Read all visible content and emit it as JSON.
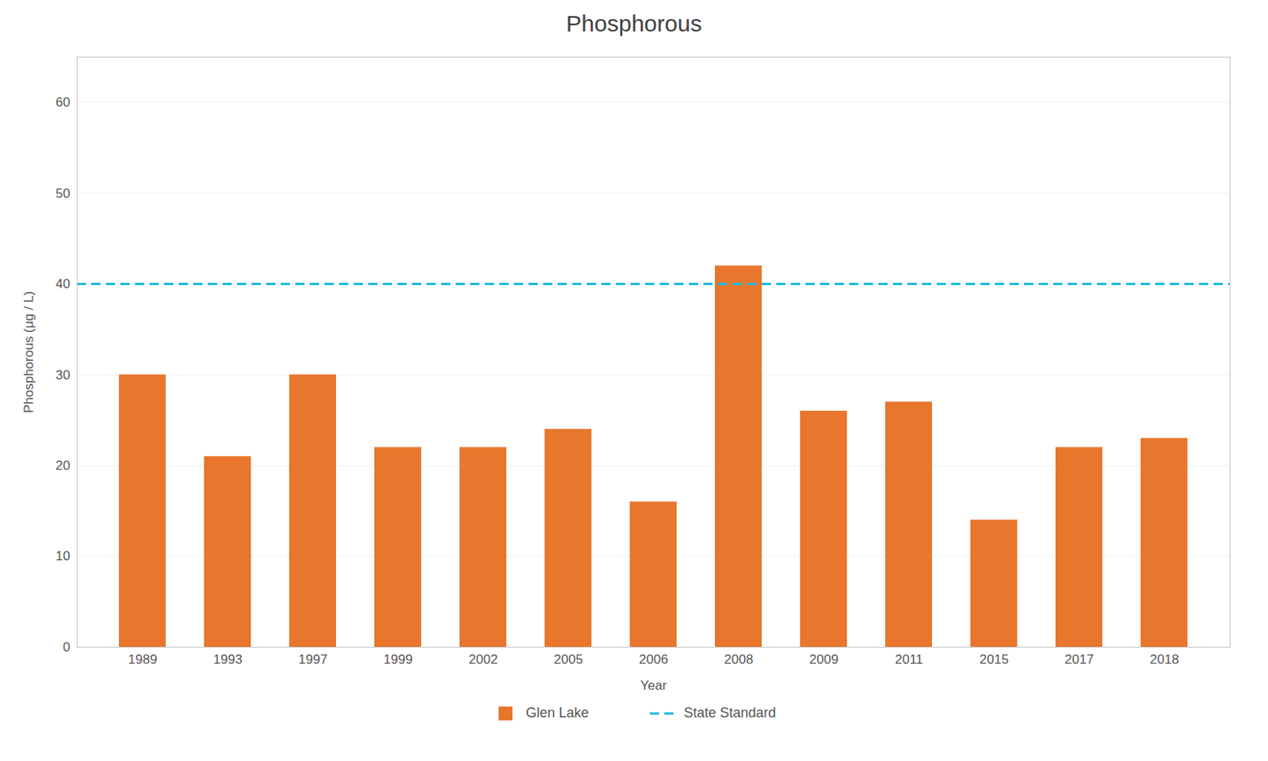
{
  "chart_data": {
    "type": "bar",
    "title": "Phosphorous",
    "xlabel": "Year",
    "ylabel": "Phosphorous (μg / L)",
    "categories": [
      "1989",
      "1993",
      "1997",
      "1999",
      "2002",
      "2005",
      "2006",
      "2008",
      "2009",
      "2011",
      "2015",
      "2017",
      "2018"
    ],
    "series": [
      {
        "name": "Glen Lake",
        "type": "bar",
        "color": "#E8762C",
        "values": [
          30,
          21,
          30,
          22,
          22,
          24,
          16,
          42,
          26,
          27,
          14,
          22,
          23
        ]
      },
      {
        "name": "State Standard",
        "type": "rule",
        "color": "#1BBAE1",
        "line_style": "dashed",
        "values": [
          40,
          40,
          40,
          40,
          40,
          40,
          40,
          40,
          40,
          40,
          40,
          40,
          40
        ]
      }
    ],
    "ylim": [
      0,
      65
    ],
    "yticks": [
      0,
      10,
      20,
      30,
      40,
      50,
      60
    ],
    "grid": true,
    "legend": "bottom"
  }
}
